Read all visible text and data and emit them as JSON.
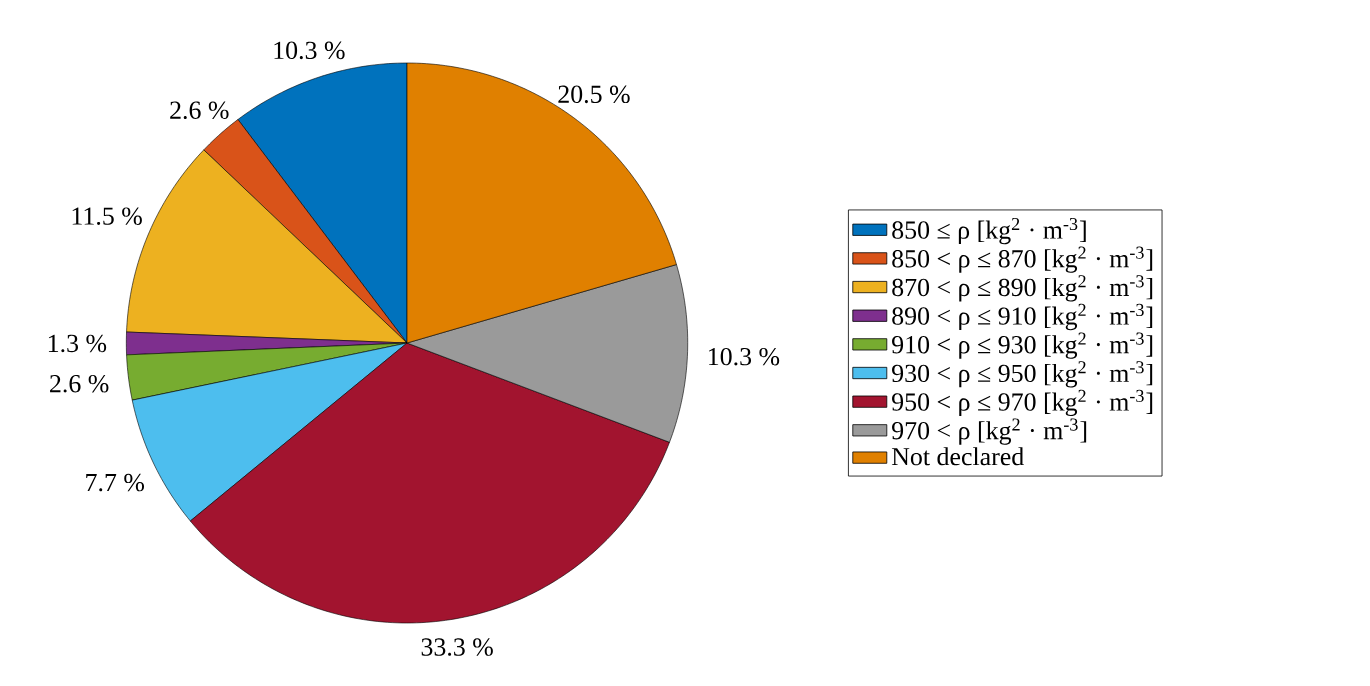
{
  "chart_data": {
    "type": "pie",
    "categories": [
      "850 ≤ ρ [kg$^{2}$ · m$^{-3}$]",
      "850 < ρ ≤ 870 [kg$^{2}$ · m$^{-3}$]",
      "870 < ρ ≤ 890 [kg$^{2}$ · m$^{-3}$]",
      "890 < ρ ≤ 910 [kg$^{2}$ · m$^{-3}$]",
      "910 < ρ ≤ 930 [kg$^{2}$ · m$^{-3}$]",
      "930 < ρ ≤ 950 [kg$^{2}$ · m$^{-3}$]",
      "950 < ρ ≤ 970 [kg$^{2}$ · m$^{-3}$]",
      "970 < ρ [kg$^{2}$ · m$^{-3}$]",
      "Not declared"
    ],
    "values": [
      10.3,
      2.6,
      11.5,
      1.3,
      2.6,
      7.7,
      33.3,
      10.3,
      20.5
    ],
    "colors": [
      "#0072bd",
      "#d95319",
      "#edb120",
      "#7e2f8e",
      "#77ac30",
      "#4dbeee",
      "#a2142f",
      "#9a9a9a",
      "#e08000"
    ],
    "value_labels": [
      "10.3 %",
      "2.6 %",
      "11.5 %",
      "1.3 %",
      "2.6 %",
      "7.7 %",
      "33.3 %",
      "10.3 %",
      "20.5 %"
    ],
    "legend": "right"
  }
}
